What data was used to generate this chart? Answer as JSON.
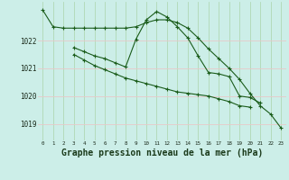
{
  "bg_color": "#cceee8",
  "grid_color_h": "#e8c8c8",
  "grid_color_v": "#aad4aa",
  "line_color": "#1a5c1a",
  "xlabel": "Graphe pression niveau de la mer (hPa)",
  "xlabel_fontsize": 7.0,
  "ylabel_ticks": [
    1019,
    1020,
    1021,
    1022
  ],
  "xlim": [
    -0.5,
    23.5
  ],
  "ylim": [
    1018.4,
    1023.4
  ],
  "xticks": [
    0,
    1,
    2,
    3,
    4,
    5,
    6,
    7,
    8,
    9,
    10,
    11,
    12,
    13,
    14,
    15,
    16,
    17,
    18,
    19,
    20,
    21,
    22,
    23
  ],
  "line1": [
    1023.1,
    1022.5,
    1022.45,
    1022.45,
    1022.45,
    1022.45,
    1022.45,
    1022.45,
    1022.45,
    1022.5,
    1022.65,
    1022.75,
    1022.75,
    1022.65,
    1022.45,
    1022.1,
    1021.7,
    1021.35,
    1021.0,
    1020.6,
    1020.1,
    1019.65,
    1019.35,
    1018.85
  ],
  "line2": [
    null,
    null,
    null,
    1021.75,
    1021.6,
    1021.45,
    1021.35,
    1021.2,
    1021.05,
    1022.05,
    1022.75,
    1023.05,
    1022.85,
    1022.5,
    1022.1,
    1021.45,
    1020.85,
    1020.8,
    1020.7,
    1020.0,
    1019.95,
    1019.75,
    null,
    null
  ],
  "line3": [
    null,
    null,
    null,
    1021.5,
    1021.3,
    1021.1,
    1020.95,
    1020.8,
    1020.65,
    1020.55,
    1020.45,
    1020.35,
    1020.25,
    1020.15,
    1020.1,
    1020.05,
    1020.0,
    1019.9,
    1019.8,
    1019.65,
    1019.6,
    null,
    null,
    null
  ]
}
